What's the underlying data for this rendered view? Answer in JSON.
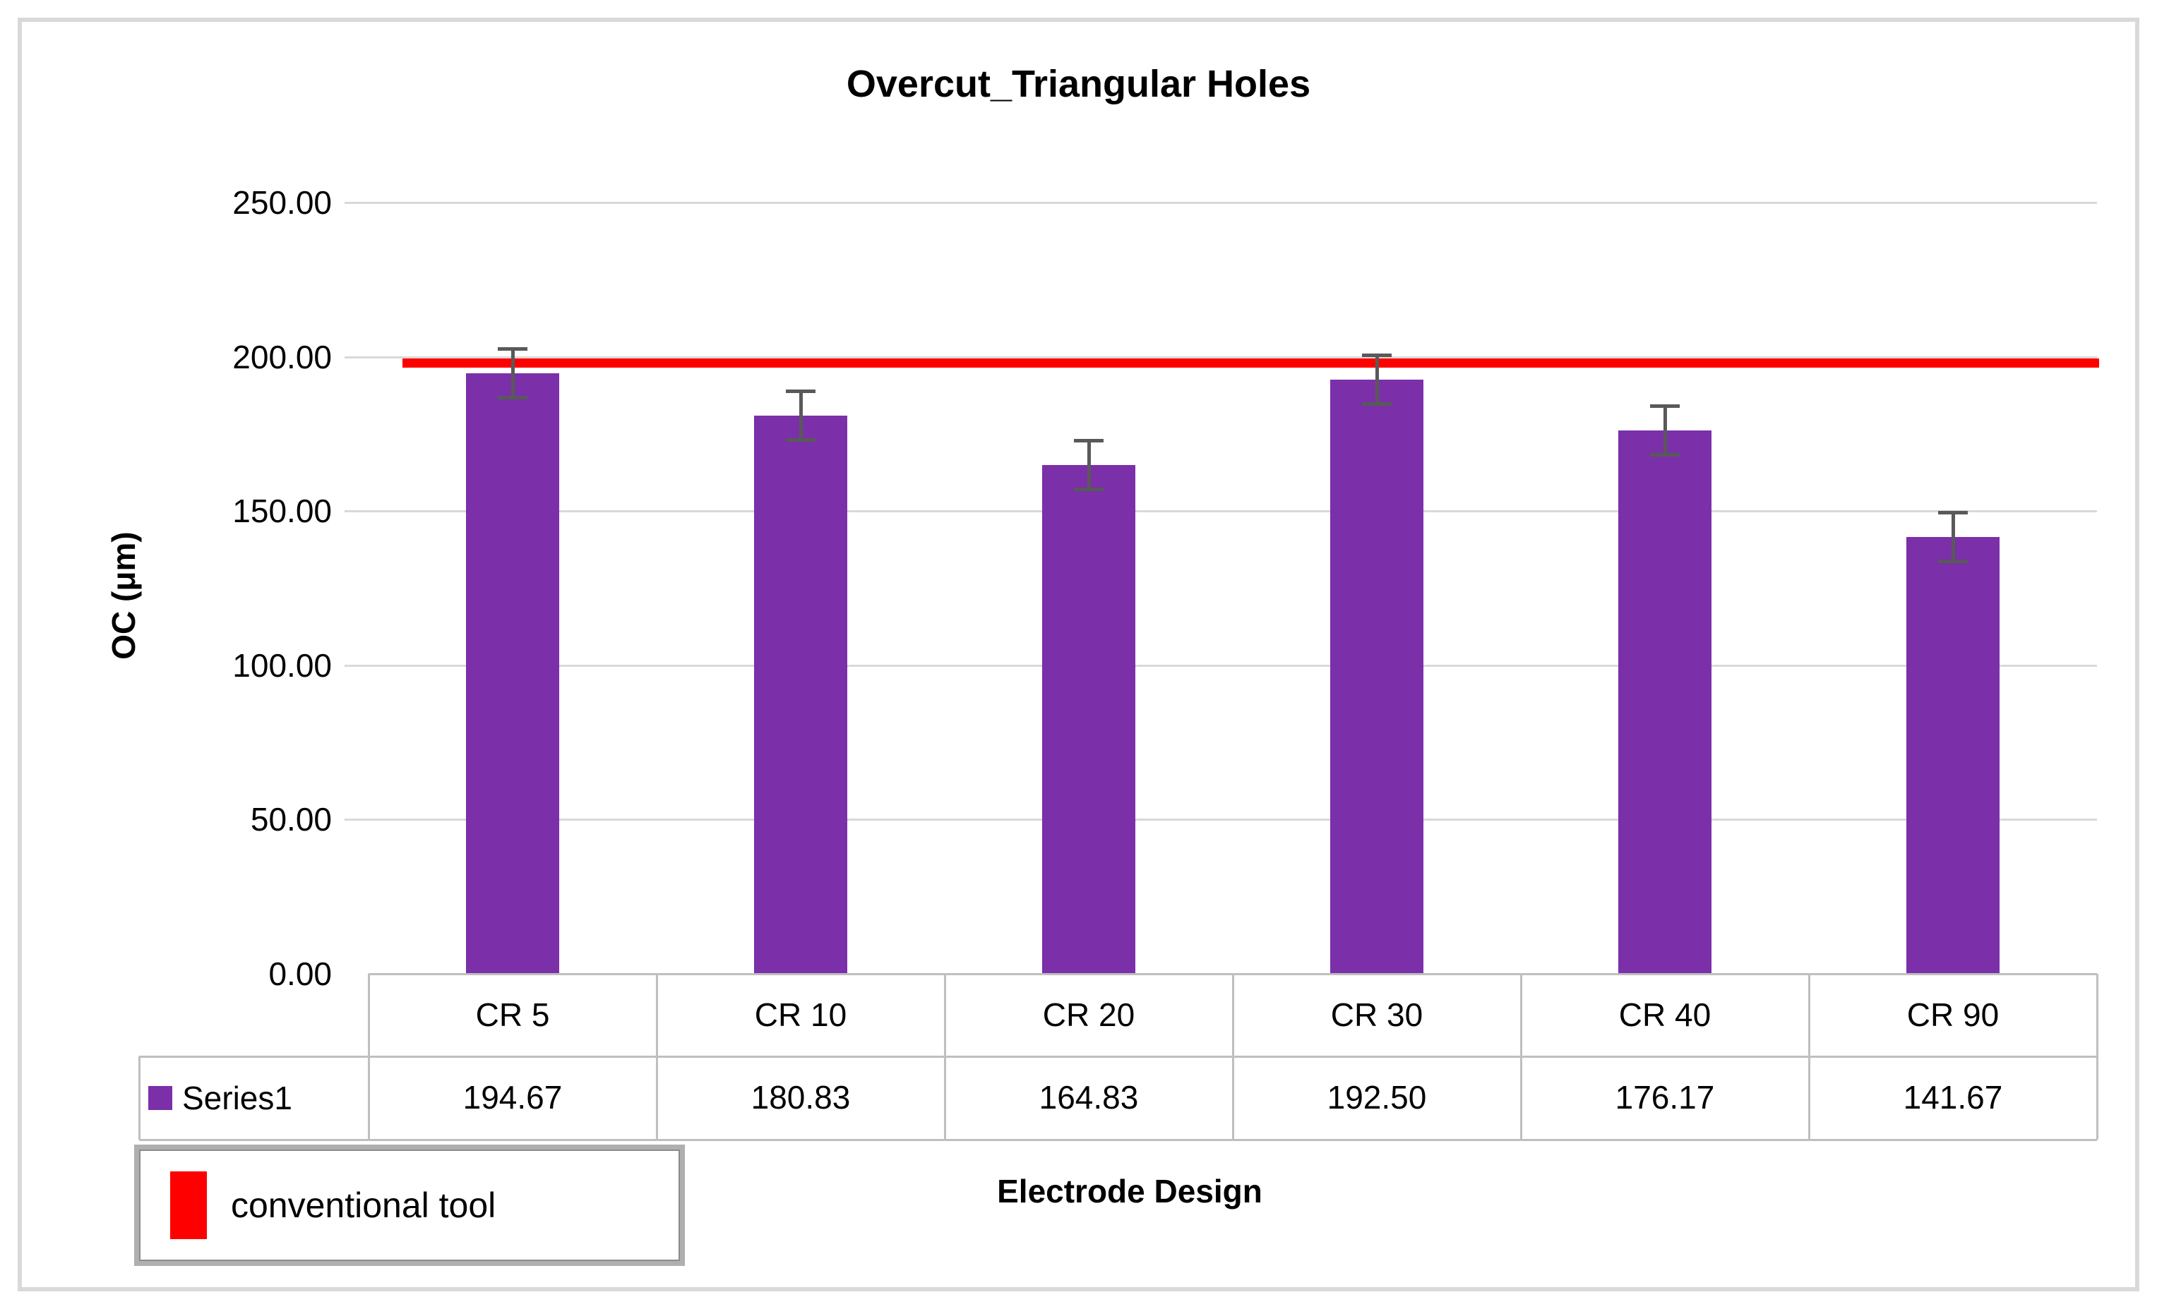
{
  "chart_data": {
    "type": "bar",
    "title": "Overcut_Triangular Holes",
    "xlabel": "Electrode Design",
    "ylabel": "OC (μm)",
    "categories": [
      "CR 5",
      "CR 10",
      "CR 20",
      "CR 30",
      "CR 40",
      "CR 90"
    ],
    "series": [
      {
        "name": "Series1",
        "values": [
          194.67,
          180.83,
          164.83,
          192.5,
          176.17,
          141.67
        ]
      }
    ],
    "value_labels": [
      "194.67",
      "180.83",
      "164.83",
      "192.50",
      "176.17",
      "141.67"
    ],
    "error_bars": {
      "plus_minus": 8
    },
    "reference_line": {
      "label": "conventional tool",
      "value": 198,
      "color": "#FF0000"
    },
    "ylim": [
      0,
      250
    ],
    "ytick_step": 50,
    "yticks": [
      "0.00",
      "50.00",
      "100.00",
      "150.00",
      "200.00",
      "250.00"
    ],
    "grid": "horizontal-only",
    "legend_position": "bottom-left",
    "data_table_shown": true,
    "bar_color": "#7B2FA9",
    "error_bar_color": "#595959",
    "gridline_color": "#D9D9D9",
    "table_border_color": "#BFBFBF"
  }
}
